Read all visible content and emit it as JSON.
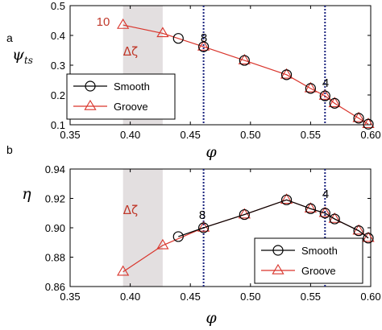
{
  "chart_data": [
    {
      "type": "line",
      "panel_label": "a",
      "xlabel": "φ",
      "ylabel": "ψ",
      "ylabel_sub": "ts",
      "xlim": [
        0.35,
        0.6
      ],
      "ylim": [
        0.1,
        0.5
      ],
      "xticks": [
        0.35,
        0.4,
        0.45,
        0.5,
        0.55,
        0.6
      ],
      "xtick_labels": [
        "0.35",
        "0.40",
        "0.45",
        "0.50",
        "0.55",
        "0.60"
      ],
      "yticks": [
        0.1,
        0.2,
        0.3,
        0.4,
        0.5
      ],
      "ytick_labels": [
        "0.1",
        "0.2",
        "0.3",
        "0.4",
        "0.5"
      ],
      "grid": false,
      "legend_position": "bottom-left",
      "shaded_region": {
        "x": [
          0.394,
          0.427
        ],
        "label": "Δζ",
        "color": "#e3dfe0"
      },
      "vlines": [
        0.461,
        0.562
      ],
      "annotations": [
        {
          "text": "10",
          "x": 0.394,
          "y": 0.435,
          "color": "#c0392b"
        },
        {
          "text": "8",
          "x": 0.461,
          "y": 0.362,
          "color": "#000000"
        },
        {
          "text": "4",
          "x": 0.562,
          "y": 0.197,
          "color": "#000000"
        }
      ],
      "series": [
        {
          "name": "Smooth",
          "marker": "circle",
          "color": "#000000",
          "x": [
            0.44,
            0.461,
            0.495,
            0.53,
            0.55,
            0.562,
            0.57,
            0.59,
            0.598
          ],
          "y": [
            0.39,
            0.362,
            0.316,
            0.268,
            0.222,
            0.197,
            0.172,
            0.122,
            0.102
          ]
        },
        {
          "name": "Groove",
          "marker": "triangle",
          "color": "#d9342b",
          "x": [
            0.394,
            0.427,
            0.461,
            0.495,
            0.53,
            0.55,
            0.562,
            0.57,
            0.59,
            0.598
          ],
          "y": [
            0.435,
            0.407,
            0.362,
            0.316,
            0.268,
            0.222,
            0.197,
            0.172,
            0.122,
            0.102
          ]
        }
      ]
    },
    {
      "type": "line",
      "panel_label": "b",
      "xlabel": "φ",
      "ylabel": "η",
      "ylabel_sub": "",
      "xlim": [
        0.35,
        0.6
      ],
      "ylim": [
        0.86,
        0.94
      ],
      "xticks": [
        0.35,
        0.4,
        0.45,
        0.5,
        0.55,
        0.6
      ],
      "xtick_labels": [
        "0.35",
        "0.40",
        "0.45",
        "0.50",
        "0.55",
        "0.60"
      ],
      "yticks": [
        0.86,
        0.88,
        0.9,
        0.92,
        0.94
      ],
      "ytick_labels": [
        "0.86",
        "0.88",
        "0.90",
        "0.92",
        "0.94"
      ],
      "grid": false,
      "legend_position": "bottom-right",
      "shaded_region": {
        "x": [
          0.394,
          0.427
        ],
        "label": "Δζ",
        "color": "#e3dfe0"
      },
      "vlines": [
        0.461,
        0.562
      ],
      "annotations": [
        {
          "text": "8",
          "x": 0.461,
          "y": 0.9,
          "color": "#000000"
        },
        {
          "text": "4",
          "x": 0.562,
          "y": 0.91,
          "color": "#000000"
        }
      ],
      "series": [
        {
          "name": "Smooth",
          "marker": "circle",
          "color": "#000000",
          "x": [
            0.44,
            0.461,
            0.495,
            0.53,
            0.55,
            0.562,
            0.57,
            0.59,
            0.598
          ],
          "y": [
            0.894,
            0.9,
            0.909,
            0.919,
            0.913,
            0.91,
            0.906,
            0.898,
            0.893
          ]
        },
        {
          "name": "Groove",
          "marker": "triangle",
          "color": "#d9342b",
          "x": [
            0.394,
            0.427,
            0.461,
            0.495,
            0.53,
            0.55,
            0.562,
            0.57,
            0.59,
            0.598
          ],
          "y": [
            0.87,
            0.888,
            0.9,
            0.909,
            0.919,
            0.913,
            0.91,
            0.906,
            0.898,
            0.893
          ]
        }
      ]
    }
  ],
  "style": {
    "groove_color": "#d9342b",
    "annotation_red": "#c0392b",
    "shade_color": "#e3dfe0",
    "vline_color": "#1a237e"
  }
}
